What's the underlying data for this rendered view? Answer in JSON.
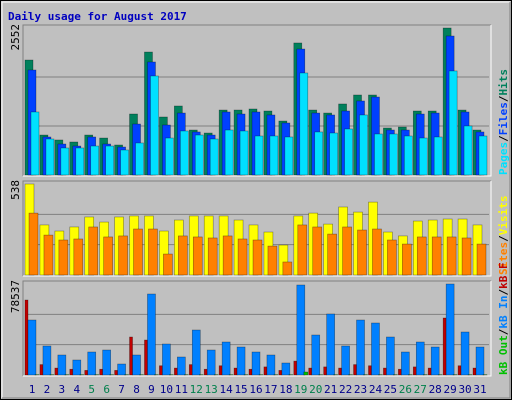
{
  "chart_data": [
    {
      "type": "bar",
      "title": "Daily usage for August 2017",
      "legend_separator": "/",
      "ylim": [
        0,
        2552
      ],
      "grid": true,
      "series": [
        {
          "name": "Hits",
          "color": "#00805c",
          "values": [
            1996,
            694,
            608,
            573,
            694,
            642,
            521,
            1059,
            2135,
            1007,
            1198,
            781,
            729,
            1128,
            1128,
            1146,
            1111,
            937,
            2292,
            1128,
            1076,
            1233,
            1389,
            1389,
            816,
            833,
            1111,
            1111,
            2552,
            1128,
            781
          ]
        },
        {
          "name": "Files",
          "color": "#0040ff",
          "values": [
            1823,
            660,
            538,
            503,
            660,
            538,
            486,
            885,
            1962,
            868,
            1076,
            747,
            694,
            1094,
            1059,
            1094,
            1042,
            903,
            2187,
            1076,
            1042,
            1111,
            1285,
            1354,
            781,
            781,
            1059,
            1076,
            2413,
            1094,
            747
          ]
        },
        {
          "name": "Pages",
          "color": "#00e0ff",
          "values": [
            1094,
            625,
            469,
            469,
            503,
            503,
            434,
            556,
            1719,
            642,
            764,
            694,
            625,
            781,
            764,
            677,
            677,
            660,
            1771,
            747,
            729,
            799,
            1042,
            712,
            712,
            677,
            642,
            660,
            1806,
            851,
            677
          ]
        }
      ]
    },
    {
      "type": "bar",
      "ylim": [
        0,
        538
      ],
      "grid": true,
      "series": [
        {
          "name": "Visits",
          "color": "#ffff00",
          "values": [
            538,
            296,
            260,
            284,
            343,
            313,
            343,
            349,
            349,
            260,
            325,
            349,
            349,
            349,
            325,
            296,
            254,
            177,
            349,
            366,
            301,
            402,
            372,
            431,
            254,
            231,
            319,
            325,
            331,
            331,
            296
          ]
        },
        {
          "name": "Sites",
          "color": "#ff8000",
          "values": [
            366,
            236,
            207,
            213,
            284,
            225,
            231,
            272,
            272,
            124,
            231,
            225,
            219,
            231,
            213,
            207,
            171,
            77,
            296,
            284,
            242,
            284,
            266,
            272,
            207,
            183,
            225,
            225,
            225,
            219,
            183
          ]
        }
      ]
    },
    {
      "type": "bar",
      "ylim": [
        0,
        78537
      ],
      "grid": true,
      "categories": [
        "1",
        "2",
        "3",
        "4",
        "5",
        "6",
        "7",
        "8",
        "9",
        "10",
        "11",
        "12",
        "13",
        "14",
        "15",
        "16",
        "17",
        "18",
        "19",
        "20",
        "21",
        "22",
        "23",
        "24",
        "25",
        "26",
        "27",
        "28",
        "29",
        "30",
        "31"
      ],
      "category_colors": [
        "#00008b",
        "#00008b",
        "#00008b",
        "#00008b",
        "#00804c",
        "#00804c",
        "#00008b",
        "#00008b",
        "#00008b",
        "#00008b",
        "#00008b",
        "#00804c",
        "#00804c",
        "#00008b",
        "#00008b",
        "#00008b",
        "#00008b",
        "#00008b",
        "#00804c",
        "#00804c",
        "#00008b",
        "#00008b",
        "#00008b",
        "#00008b",
        "#00008b",
        "#00804c",
        "#00804c",
        "#00008b",
        "#00008b",
        "#00008b",
        "#00008b"
      ],
      "series": [
        {
          "name": "kB F",
          "color": "#c00000",
          "values": [
            64725,
            9000,
            6000,
            5000,
            4000,
            5000,
            4000,
            32794,
            30205,
            8000,
            6000,
            9000,
            5000,
            8000,
            6000,
            5000,
            7000,
            4000,
            12000,
            6000,
            7000,
            6000,
            9000,
            8000,
            6000,
            5000,
            7000,
            6000,
            49191,
            8000,
            6000
          ]
        },
        {
          "name": "kB In",
          "color": "#0080ff",
          "values": [
            47465,
            25027,
            17260,
            12945,
            19849,
            21575,
            9493,
            17260,
            69903,
            26753,
            15534,
            38835,
            21575,
            28479,
            24164,
            19849,
            17260,
            10356,
            77670,
            34520,
            52643,
            25027,
            47465,
            44876,
            32794,
            19849,
            28479,
            24164,
            78537,
            37109,
            24164
          ]
        },
        {
          "name": "kB Out",
          "color": "#00c000",
          "values": [
            300,
            300,
            300,
            300,
            300,
            300,
            300,
            300,
            300,
            300,
            300,
            300,
            300,
            300,
            300,
            300,
            300,
            300,
            2589,
            300,
            300,
            300,
            300,
            300,
            300,
            300,
            300,
            300,
            300,
            300,
            300
          ]
        }
      ]
    }
  ]
}
